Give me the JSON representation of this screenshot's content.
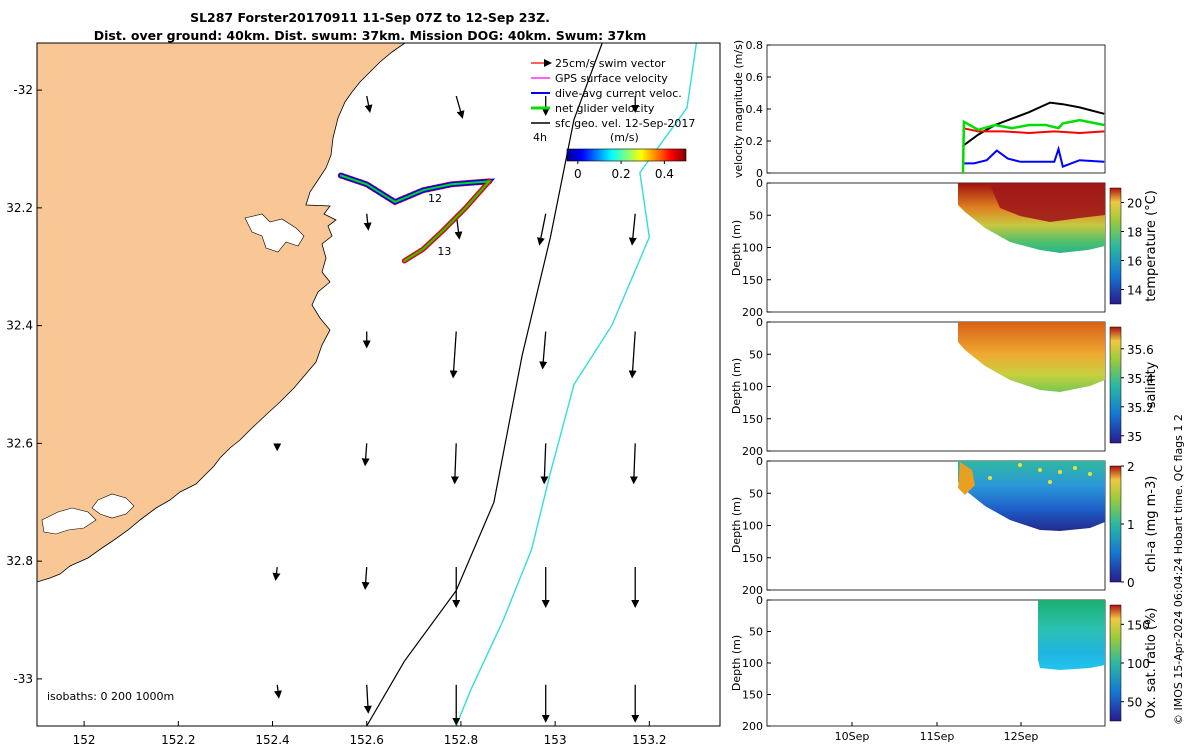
{
  "title_line1": "SL287 Forster20170911 11-Sep 07Z to 12-Sep 23Z.",
  "title_line2": "Dist. over ground: 40km. Dist. swum: 37km. Mission DOG: 40km. Swum: 37km",
  "side_label": "© IMOS 15-Apr-2024 06:04:24 Hobart time. QC flags 1  2",
  "colors": {
    "land": "#f8c795",
    "swim": "#ff0000",
    "gps": "#ff00ff",
    "dive": "#0000ff",
    "net": "#00dd00",
    "geo": "#000000",
    "isobath_200": "#000000",
    "isobath_1000": "#33dddd"
  },
  "chart_data": [
    {
      "type": "map",
      "name": "glider-track-map",
      "xlim": [
        151.9,
        153.35
      ],
      "ylim": [
        -33.08,
        -31.92
      ],
      "x_ticks": [
        "152",
        "152.2",
        "152.4",
        "152.6",
        "152.8",
        "153",
        "153.2"
      ],
      "x_tick_values": [
        152,
        152.2,
        152.4,
        152.6,
        152.8,
        153,
        153.2
      ],
      "y_ticks": [
        "-32",
        "32.2",
        "32.4",
        "32.6",
        "32.8",
        "-33"
      ],
      "y_tick_values": [
        -32,
        -32.2,
        -32.4,
        -32.6,
        -32.8,
        -33
      ],
      "legend": [
        "25cm/s swim vector",
        "GPS surface velocity",
        "dive-avg current veloc.",
        "net glider velocity",
        "sfc geo. vel. 12-Sep-2017"
      ],
      "legend_extra": "4h",
      "colorbar_label": "(m/s)",
      "colorbar_ticks": [
        "0",
        "0.2",
        "0.4"
      ],
      "colorbar_range": [
        -0.05,
        0.5
      ],
      "isobath_label": "isobaths: 0   200  1000m",
      "track_labels": [
        {
          "text": "12",
          "lon": 152.73,
          "lat": -32.19
        },
        {
          "text": "13",
          "lon": 152.75,
          "lat": -32.28
        }
      ],
      "track_out": [
        [
          152.545,
          -32.145
        ],
        [
          152.6,
          -32.16
        ],
        [
          152.66,
          -32.19
        ],
        [
          152.72,
          -32.17
        ],
        [
          152.78,
          -32.16
        ],
        [
          152.86,
          -32.155
        ]
      ],
      "track_back": [
        [
          152.86,
          -32.155
        ],
        [
          152.81,
          -32.2
        ],
        [
          152.76,
          -32.24
        ],
        [
          152.72,
          -32.27
        ],
        [
          152.68,
          -32.29
        ]
      ],
      "isobath_200m": [
        [
          153.1,
          -31.92
        ],
        [
          153.04,
          -32.05
        ],
        [
          152.99,
          -32.25
        ],
        [
          152.93,
          -32.45
        ],
        [
          152.87,
          -32.7
        ],
        [
          152.79,
          -32.85
        ],
        [
          152.68,
          -32.97
        ],
        [
          152.6,
          -33.08
        ]
      ],
      "isobath_1000m": [
        [
          153.3,
          -31.92
        ],
        [
          153.28,
          -32.03
        ],
        [
          153.18,
          -32.14
        ],
        [
          153.2,
          -32.25
        ],
        [
          153.12,
          -32.4
        ],
        [
          153.04,
          -32.5
        ],
        [
          152.99,
          -32.65
        ],
        [
          152.95,
          -32.78
        ],
        [
          152.89,
          -32.9
        ],
        [
          152.82,
          -33.02
        ],
        [
          152.79,
          -33.08
        ]
      ],
      "geo_vectors": [
        {
          "lon": 152.6,
          "lat": -32.01,
          "u": 0.01,
          "v": -0.05
        },
        {
          "lon": 152.79,
          "lat": -32.01,
          "u": 0.02,
          "v": -0.07
        },
        {
          "lon": 152.98,
          "lat": -32.01,
          "u": 0.0,
          "v": -0.06
        },
        {
          "lon": 153.17,
          "lat": -32.01,
          "u": 0.0,
          "v": -0.05
        },
        {
          "lon": 152.6,
          "lat": -32.21,
          "u": 0.005,
          "v": -0.05
        },
        {
          "lon": 152.79,
          "lat": -32.21,
          "u": 0.01,
          "v": -0.08
        },
        {
          "lon": 152.98,
          "lat": -32.21,
          "u": -0.02,
          "v": -0.1
        },
        {
          "lon": 153.17,
          "lat": -32.21,
          "u": -0.01,
          "v": -0.1
        },
        {
          "lon": 152.6,
          "lat": -32.41,
          "u": 0.0,
          "v": -0.05
        },
        {
          "lon": 152.79,
          "lat": -32.41,
          "u": -0.01,
          "v": -0.15
        },
        {
          "lon": 152.98,
          "lat": -32.41,
          "u": -0.01,
          "v": -0.12
        },
        {
          "lon": 153.17,
          "lat": -32.41,
          "u": -0.01,
          "v": -0.15
        },
        {
          "lon": 152.41,
          "lat": -32.6,
          "u": 0.0,
          "v": -0.02
        },
        {
          "lon": 152.6,
          "lat": -32.6,
          "u": -0.005,
          "v": -0.07
        },
        {
          "lon": 152.79,
          "lat": -32.6,
          "u": -0.005,
          "v": -0.13
        },
        {
          "lon": 152.98,
          "lat": -32.6,
          "u": -0.005,
          "v": -0.13
        },
        {
          "lon": 153.17,
          "lat": -32.6,
          "u": -0.005,
          "v": -0.13
        },
        {
          "lon": 152.41,
          "lat": -32.81,
          "u": -0.005,
          "v": -0.04
        },
        {
          "lon": 152.6,
          "lat": -32.81,
          "u": -0.005,
          "v": -0.07
        },
        {
          "lon": 152.79,
          "lat": -32.81,
          "u": 0.0,
          "v": -0.13
        },
        {
          "lon": 152.98,
          "lat": -32.81,
          "u": 0.0,
          "v": -0.13
        },
        {
          "lon": 153.17,
          "lat": -32.81,
          "u": 0.0,
          "v": -0.13
        },
        {
          "lon": 152.41,
          "lat": -33.01,
          "u": 0.005,
          "v": -0.04
        },
        {
          "lon": 152.6,
          "lat": -33.01,
          "u": 0.005,
          "v": -0.09
        },
        {
          "lon": 152.79,
          "lat": -33.01,
          "u": 0.0,
          "v": -0.13
        },
        {
          "lon": 152.98,
          "lat": -33.01,
          "u": 0.0,
          "v": -0.12
        },
        {
          "lon": 153.17,
          "lat": -33.01,
          "u": 0.0,
          "v": -0.12
        }
      ]
    },
    {
      "type": "line",
      "name": "velocity-magnitude",
      "ylabel": "velocity magnitude (m/s)",
      "ylim": [
        0,
        0.8
      ],
      "yticks": [
        "0",
        "0.2",
        "0.4",
        "0.6",
        "0.8"
      ],
      "ytick_values": [
        0,
        0.2,
        0.4,
        0.6,
        0.8
      ],
      "xlim": [
        9.0,
        13.0
      ],
      "series": [
        {
          "color": "black",
          "x": [
            11.32,
            11.5,
            11.7,
            11.9,
            12.1,
            12.35,
            12.5,
            12.7,
            12.99
          ],
          "y": [
            0.17,
            0.24,
            0.3,
            0.34,
            0.38,
            0.44,
            0.43,
            0.41,
            0.37
          ]
        },
        {
          "color": "red",
          "x": [
            11.32,
            11.5,
            11.8,
            12.1,
            12.4,
            12.7,
            12.99
          ],
          "y": [
            0.28,
            0.26,
            0.26,
            0.25,
            0.26,
            0.25,
            0.26
          ]
        },
        {
          "color": "blue",
          "x": [
            11.32,
            11.45,
            11.6,
            11.72,
            11.85,
            12.0,
            12.2,
            12.4,
            12.45,
            12.5,
            12.7,
            12.99
          ],
          "y": [
            0.06,
            0.06,
            0.08,
            0.14,
            0.09,
            0.07,
            0.07,
            0.07,
            0.15,
            0.04,
            0.08,
            0.07
          ]
        },
        {
          "color": "green",
          "x": [
            11.32,
            11.33,
            11.5,
            11.7,
            11.9,
            12.1,
            12.3,
            12.45,
            12.5,
            12.7,
            12.99
          ],
          "y": [
            0.0,
            0.32,
            0.27,
            0.3,
            0.28,
            0.3,
            0.3,
            0.28,
            0.31,
            0.33,
            0.3
          ]
        }
      ]
    },
    {
      "type": "heatmap",
      "name": "temperature-section",
      "ylabel": "Depth (m)",
      "yticks": [
        "0",
        "50",
        "100",
        "150",
        "200"
      ],
      "colorbar_label": "temperature (°C)",
      "colorbar_ticks": [
        "14",
        "16",
        "18",
        "20"
      ],
      "colorbar_tick_values": [
        14,
        16,
        18,
        20
      ],
      "colorbar_range": [
        13,
        21
      ]
    },
    {
      "type": "heatmap",
      "name": "salinity-section",
      "ylabel": "Depth (m)",
      "yticks": [
        "0",
        "50",
        "100",
        "150",
        "200"
      ],
      "colorbar_label": "salinity",
      "colorbar_ticks": [
        "35",
        "35.2",
        "35.4",
        "35.6"
      ],
      "colorbar_tick_values": [
        35.0,
        35.2,
        35.4,
        35.6
      ],
      "colorbar_range": [
        34.95,
        35.75
      ]
    },
    {
      "type": "heatmap",
      "name": "chla-section",
      "ylabel": "Depth (m)",
      "yticks": [
        "0",
        "50",
        "100",
        "150",
        "200"
      ],
      "colorbar_label": "chl-a (mg m-3)",
      "colorbar_ticks": [
        "0",
        "1",
        "2"
      ],
      "colorbar_tick_values": [
        0,
        1,
        2
      ],
      "colorbar_range": [
        0,
        2
      ]
    },
    {
      "type": "heatmap",
      "name": "oxygen-section",
      "ylabel": "Depth (m)",
      "yticks": [
        "0",
        "50",
        "100",
        "150",
        "200"
      ],
      "xticks": [
        "10Sep",
        "11Sep",
        "12Sep"
      ],
      "colorbar_label": "Ox. sat. ratio (%)",
      "colorbar_ticks": [
        "50",
        "100",
        "150"
      ],
      "colorbar_tick_values": [
        50,
        100,
        150
      ],
      "colorbar_range": [
        25,
        175
      ]
    }
  ]
}
